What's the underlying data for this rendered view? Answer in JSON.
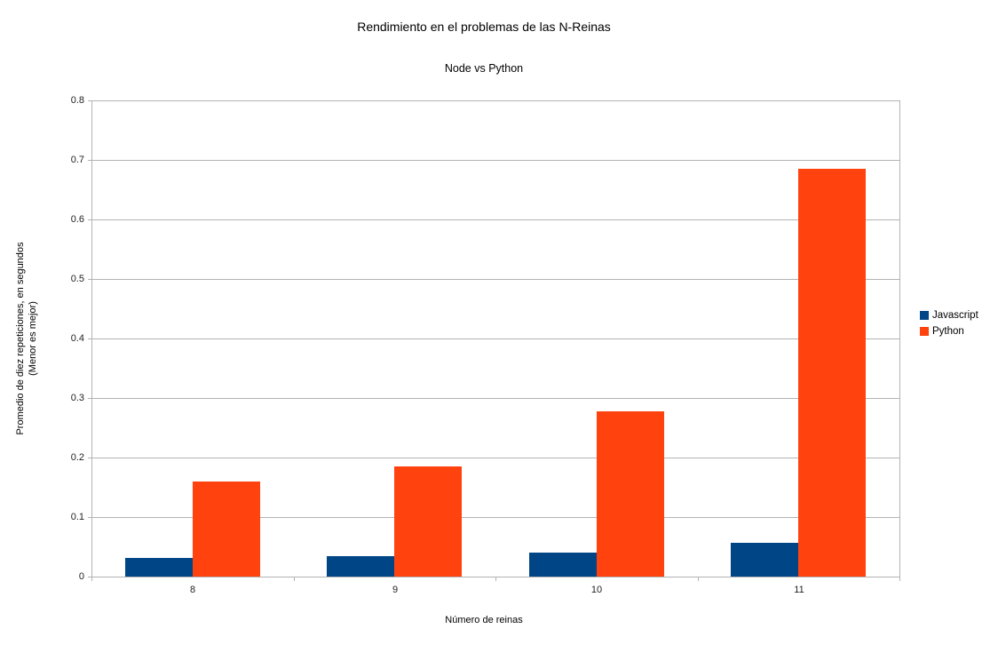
{
  "chart_data": {
    "type": "bar",
    "title": "Rendimiento en el problemas de las N-Reinas",
    "subtitle": "Node vs Python",
    "categories": [
      "8",
      "9",
      "10",
      "11"
    ],
    "series": [
      {
        "name": "Javascript",
        "color": "#004586",
        "values": [
          0.032,
          0.034,
          0.041,
          0.057
        ]
      },
      {
        "name": "Python",
        "color": "#FF420E",
        "values": [
          0.16,
          0.185,
          0.277,
          0.685
        ]
      }
    ],
    "xlabel": "Número de reinas",
    "ylabel_line1": "Promedio de diez repeticiones, en segundos",
    "ylabel_line2": "(Menor es mejor)",
    "ylim": [
      0,
      0.8
    ],
    "yticks": [
      "0",
      "0.1",
      "0.2",
      "0.3",
      "0.4",
      "0.5",
      "0.6",
      "0.7",
      "0.8"
    ],
    "grid": true,
    "grid_color": "#b3b3b3",
    "legend_position": "right",
    "background": "#ffffff"
  }
}
